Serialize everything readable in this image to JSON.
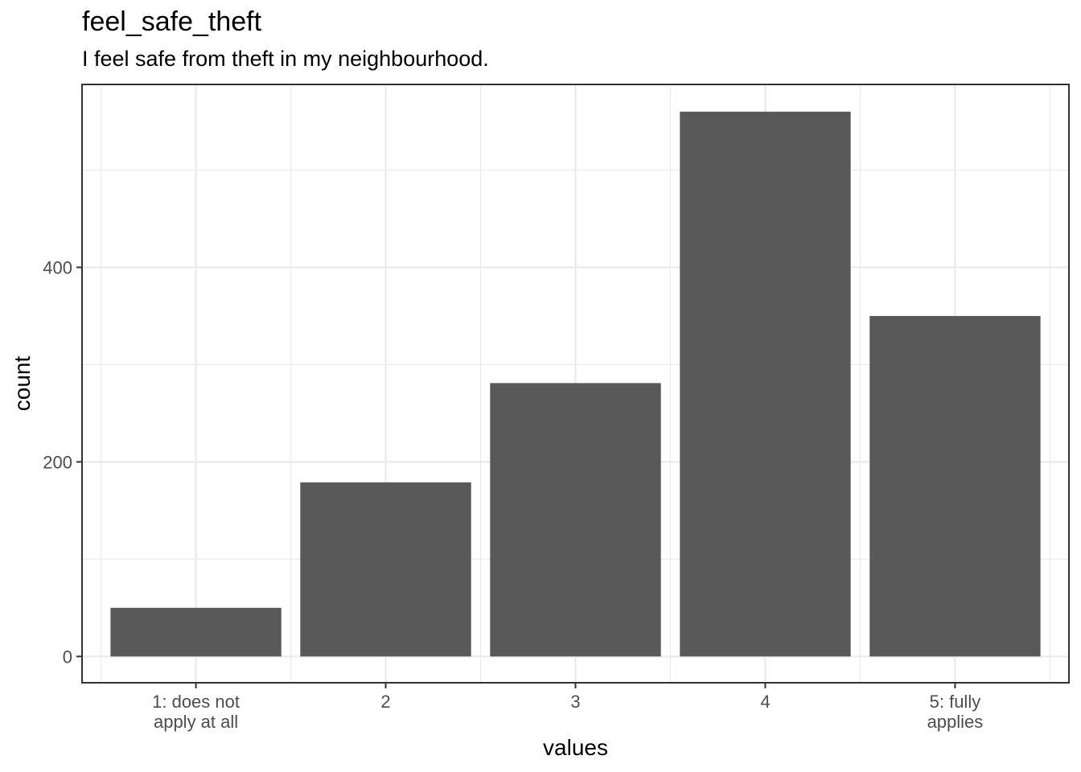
{
  "chart_data": {
    "type": "bar",
    "title": "feel_safe_theft",
    "subtitle": "I feel safe from theft in my neighbourhood.",
    "xlabel": "values",
    "ylabel": "count",
    "categories": [
      [
        "1: does not",
        "apply at all"
      ],
      [
        "2"
      ],
      [
        "3"
      ],
      [
        "4"
      ],
      [
        "5: fully",
        "applies"
      ]
    ],
    "values": [
      50,
      179,
      281,
      560,
      350
    ],
    "ylim": [
      -27,
      588
    ],
    "y_ticks": [
      0,
      200,
      400
    ],
    "y_tick_labels": [
      "0",
      "200",
      "400"
    ],
    "bar_color": "#595959",
    "grid_color": "#ebebeb",
    "grid": true
  }
}
